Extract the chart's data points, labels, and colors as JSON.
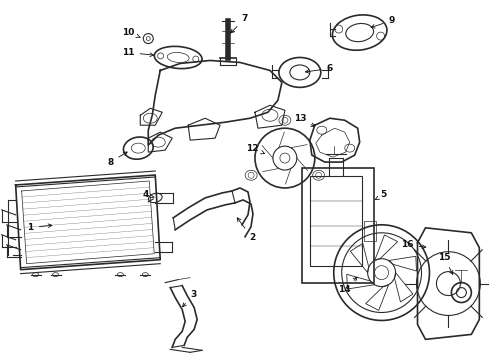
{
  "bg_color": "#ffffff",
  "line_color": "#2a2a2a",
  "label_color": "#111111",
  "fig_width": 4.9,
  "fig_height": 3.6,
  "dpi": 100
}
